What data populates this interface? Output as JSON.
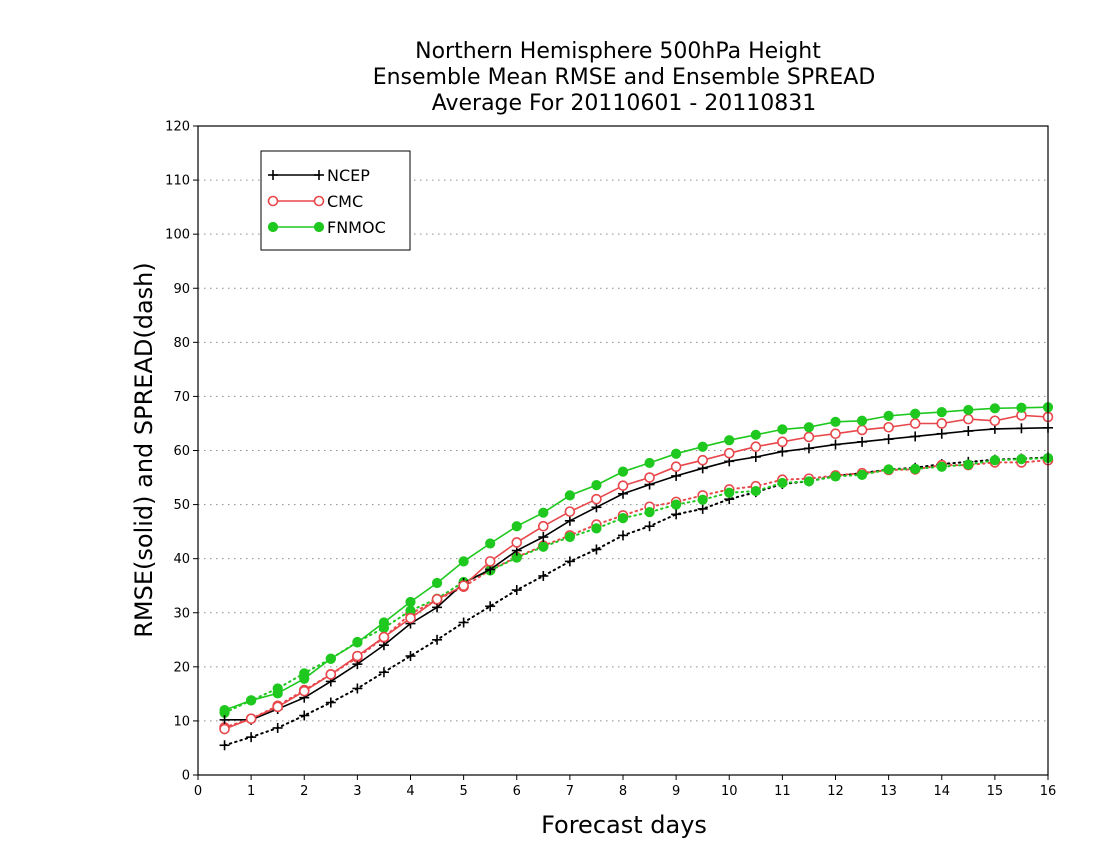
{
  "chart_data": {
    "type": "line",
    "title": [
      "Northern Hemisphere 500hPa Height",
      "Ensemble Mean RMSE and Ensemble SPREAD",
      "Average For 20110601 - 20110831"
    ],
    "xlabel": "Forecast days",
    "ylabel": "RMSE(solid) and SPREAD(dash)",
    "xlim": [
      0,
      16
    ],
    "ylim": [
      0,
      120
    ],
    "xticks": [
      "0",
      "1",
      "2",
      "3",
      "4",
      "5",
      "6",
      "7",
      "8",
      "9",
      "10",
      "11",
      "12",
      "13",
      "14",
      "15",
      "16"
    ],
    "yticks": [
      "0",
      "10",
      "20",
      "30",
      "40",
      "50",
      "60",
      "70",
      "80",
      "90",
      "100",
      "110",
      "120"
    ],
    "grid": "horizontal dotted",
    "legend_position": "top-left",
    "x": [
      0.5,
      1,
      1.5,
      2,
      2.5,
      3,
      3.5,
      4,
      4.5,
      5,
      5.5,
      6,
      6.5,
      7,
      7.5,
      8,
      8.5,
      9,
      9.5,
      10,
      10.5,
      11,
      11.5,
      12,
      12.5,
      13,
      13.5,
      14,
      14.5,
      15,
      15.5,
      16
    ],
    "series": [
      {
        "name": "NCEP",
        "style": "solid",
        "color": "#000000",
        "marker": "plus",
        "values": [
          10.2,
          10.2,
          12.2,
          14.3,
          17.3,
          20.5,
          24,
          28,
          31,
          35.5,
          38,
          41.5,
          44,
          47,
          49.5,
          52,
          53.7,
          55.3,
          56.7,
          58,
          58.8,
          59.8,
          60.4,
          61.1,
          61.6,
          62.1,
          62.6,
          63.1,
          63.6,
          64,
          64.1,
          64.2
        ]
      },
      {
        "name": "NCEP",
        "style": "dotted",
        "color": "#000000",
        "marker": "plus",
        "values": [
          5.5,
          7,
          8.7,
          11,
          13.4,
          16,
          19,
          22,
          25,
          28.2,
          31.2,
          34.2,
          36.8,
          39.5,
          41.7,
          44.3,
          46,
          48.2,
          49.2,
          51,
          52.3,
          53.8,
          54.3,
          55.3,
          55.8,
          56.5,
          56.8,
          57.5,
          57.9,
          58.3,
          58.5,
          58.7
        ]
      },
      {
        "name": "CMC",
        "style": "solid",
        "color": "#e8474b",
        "marker": "open-circle",
        "values": [
          8.5,
          10.4,
          12.6,
          15.5,
          18.6,
          22,
          25.5,
          29,
          32.5,
          35,
          39.5,
          43,
          46,
          48.7,
          51,
          53.5,
          55,
          57,
          58.2,
          59.5,
          60.7,
          61.6,
          62.5,
          63.1,
          63.8,
          64.3,
          65,
          65,
          65.8,
          65.5,
          66.5,
          66.2
        ]
      },
      {
        "name": "CMC",
        "style": "dotted",
        "color": "#e8474b",
        "marker": "open-circle",
        "values": [
          8.8,
          10.4,
          12.8,
          15.7,
          18.6,
          21.7,
          25.4,
          29.8,
          32.4,
          34.8,
          37.9,
          40.3,
          42.4,
          44.3,
          46.3,
          48,
          49.6,
          50.5,
          51.7,
          52.8,
          53.4,
          54.6,
          54.8,
          55.4,
          55.8,
          56.4,
          56.5,
          57.3,
          57.3,
          57.8,
          57.8,
          58.2
        ]
      },
      {
        "name": "FNMOC",
        "style": "solid",
        "color": "#1ec81e",
        "marker": "filled-circle",
        "values": [
          12,
          13.8,
          15.1,
          17.8,
          21.5,
          24.5,
          28.2,
          32,
          35.5,
          39.5,
          42.8,
          46,
          48.5,
          51.7,
          53.6,
          56.1,
          57.7,
          59.4,
          60.7,
          61.9,
          62.9,
          63.9,
          64.3,
          65.3,
          65.5,
          66.4,
          66.8,
          67.1,
          67.5,
          67.8,
          67.9,
          68
        ]
      },
      {
        "name": "FNMOC",
        "style": "dotted",
        "color": "#1ec81e",
        "marker": "filled-circle",
        "values": [
          11.5,
          13.8,
          16,
          18.8,
          21.5,
          24.6,
          27.2,
          30.4,
          32.6,
          35.7,
          37.8,
          40.2,
          42.2,
          44,
          45.6,
          47.5,
          48.6,
          50,
          50.9,
          52.2,
          52.5,
          54,
          54.3,
          55.2,
          55.5,
          56.5,
          56.6,
          57,
          57.4,
          58.2,
          58.4,
          58.6
        ]
      }
    ]
  }
}
